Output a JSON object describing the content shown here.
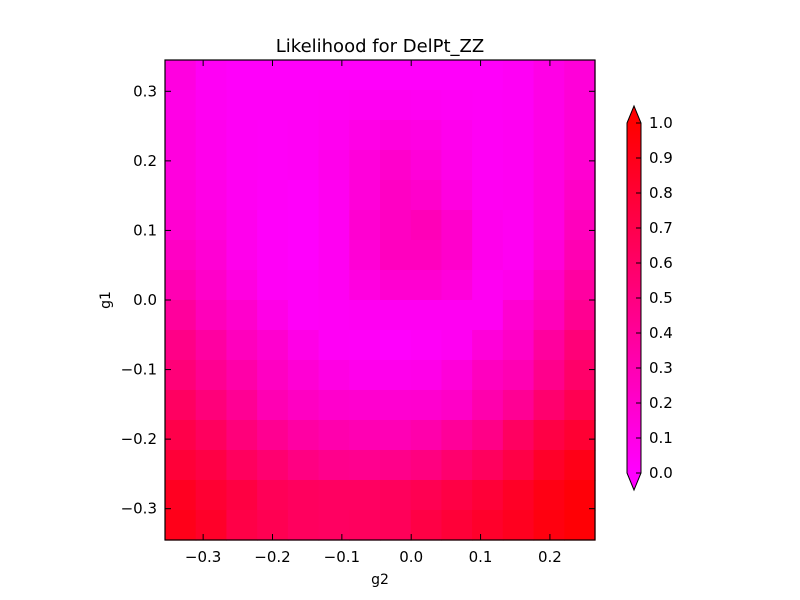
{
  "chart_data": {
    "type": "heatmap",
    "title": "Likelihood for DelPt_ZZ",
    "xlabel": "g2",
    "ylabel": "g1",
    "x_ticks": [
      "−0.3",
      "−0.2",
      "−0.1",
      "0.0",
      "0.1",
      "0.2"
    ],
    "y_ticks": [
      "−0.3",
      "−0.2",
      "−0.1",
      "0.0",
      "0.1",
      "0.2",
      "0.3"
    ],
    "colorbar_ticks": [
      "0.0",
      "0.1",
      "0.2",
      "0.3",
      "0.4",
      "0.5",
      "0.6",
      "0.7",
      "0.8",
      "0.9",
      "1.0"
    ],
    "colormap": "gist_rainbow_r",
    "zlim": [
      0,
      1
    ],
    "x_range": [
      -0.355,
      0.265
    ],
    "y_range": [
      -0.345,
      0.345
    ],
    "grid": false,
    "columns": 14,
    "rows": 16,
    "values_top_to_bottom": [
      [
        0.12,
        0.04,
        0.02,
        0.02,
        0.02,
        0.02,
        0.02,
        0.02,
        0.02,
        0.02,
        0.02,
        0.04,
        0.1,
        0.15
      ],
      [
        0.1,
        0.05,
        0.03,
        0.03,
        0.03,
        0.04,
        0.05,
        0.06,
        0.05,
        0.04,
        0.03,
        0.04,
        0.1,
        0.16
      ],
      [
        0.12,
        0.07,
        0.04,
        0.03,
        0.04,
        0.06,
        0.1,
        0.13,
        0.11,
        0.07,
        0.04,
        0.05,
        0.1,
        0.17
      ],
      [
        0.13,
        0.08,
        0.04,
        0.03,
        0.04,
        0.08,
        0.14,
        0.2,
        0.15,
        0.09,
        0.04,
        0.05,
        0.11,
        0.18
      ],
      [
        0.15,
        0.1,
        0.05,
        0.03,
        0.02,
        0.06,
        0.15,
        0.23,
        0.2,
        0.12,
        0.05,
        0.06,
        0.12,
        0.22
      ],
      [
        0.18,
        0.13,
        0.07,
        0.02,
        0.01,
        0.05,
        0.18,
        0.24,
        0.28,
        0.2,
        0.07,
        0.05,
        0.12,
        0.26
      ],
      [
        0.23,
        0.17,
        0.08,
        0.03,
        0.01,
        0.05,
        0.16,
        0.25,
        0.25,
        0.2,
        0.08,
        0.05,
        0.15,
        0.3
      ],
      [
        0.3,
        0.21,
        0.12,
        0.04,
        0.03,
        0.05,
        0.12,
        0.18,
        0.18,
        0.14,
        0.05,
        0.08,
        0.22,
        0.37
      ],
      [
        0.39,
        0.27,
        0.2,
        0.1,
        0.03,
        0.04,
        0.05,
        0.05,
        0.05,
        0.05,
        0.05,
        0.18,
        0.27,
        0.43
      ],
      [
        0.47,
        0.37,
        0.26,
        0.19,
        0.1,
        0.04,
        0.03,
        0.01,
        0.03,
        0.05,
        0.15,
        0.22,
        0.38,
        0.53
      ],
      [
        0.53,
        0.43,
        0.34,
        0.24,
        0.17,
        0.11,
        0.08,
        0.08,
        0.09,
        0.15,
        0.25,
        0.3,
        0.45,
        0.59
      ],
      [
        0.62,
        0.52,
        0.42,
        0.3,
        0.24,
        0.2,
        0.19,
        0.18,
        0.19,
        0.22,
        0.32,
        0.42,
        0.57,
        0.68
      ],
      [
        0.71,
        0.63,
        0.52,
        0.43,
        0.36,
        0.32,
        0.3,
        0.29,
        0.33,
        0.4,
        0.47,
        0.62,
        0.73,
        0.8
      ],
      [
        0.78,
        0.73,
        0.63,
        0.56,
        0.49,
        0.45,
        0.44,
        0.46,
        0.5,
        0.57,
        0.63,
        0.72,
        0.84,
        0.91
      ],
      [
        0.87,
        0.8,
        0.74,
        0.66,
        0.63,
        0.62,
        0.62,
        0.64,
        0.68,
        0.73,
        0.78,
        0.85,
        0.92,
        0.97
      ],
      [
        0.9,
        0.84,
        0.72,
        0.68,
        0.63,
        0.62,
        0.63,
        0.65,
        0.73,
        0.78,
        0.83,
        0.88,
        0.94,
        0.98
      ]
    ]
  }
}
